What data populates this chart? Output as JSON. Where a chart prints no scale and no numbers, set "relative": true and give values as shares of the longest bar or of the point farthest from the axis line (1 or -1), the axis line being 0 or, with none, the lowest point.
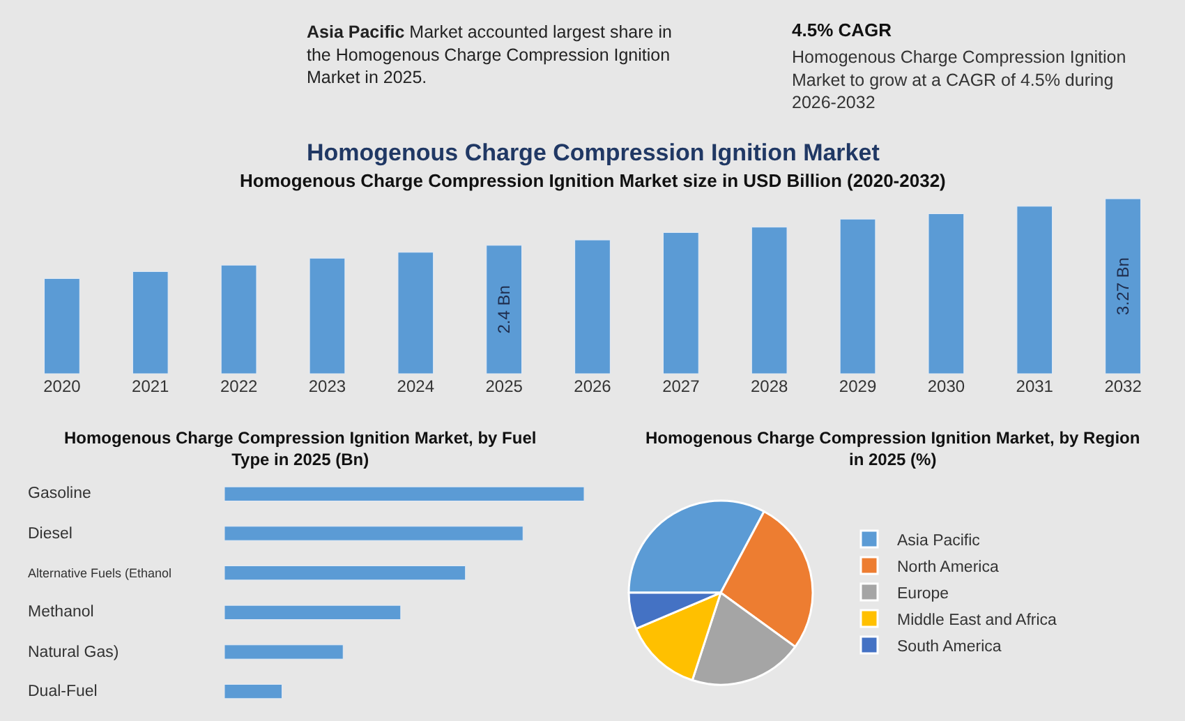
{
  "chart_data": [
    {
      "type": "other",
      "annotations": [
        "Asia Pacific",
        "Market accounted largest share in the Homogenous Charge Compression Ignition Market in 2025.",
        "4.5% CAGR",
        "Homogenous Charge Compression Ignition Market to grow at a CAGR of 4.5% during 2026-2032"
      ]
    },
    {
      "type": "bar",
      "title": "Homogenous Charge Compression Ignition Market",
      "subtitle": "Homogenous Charge Compression Ignition Market size in USD Billion (2020-2032)",
      "categories": [
        "2020",
        "2021",
        "2022",
        "2023",
        "2024",
        "2025",
        "2026",
        "2027",
        "2028",
        "2029",
        "2030",
        "2031",
        "2032"
      ],
      "values": [
        1.78,
        1.91,
        2.03,
        2.16,
        2.27,
        2.4,
        2.5,
        2.64,
        2.74,
        2.89,
        2.99,
        3.13,
        3.27
      ],
      "value_labels": [
        null,
        null,
        null,
        null,
        null,
        "2.4 Bn",
        null,
        null,
        null,
        null,
        null,
        null,
        "3.27 Bn"
      ],
      "color": "#5b9bd5",
      "tick_labels": "x",
      "grid": false,
      "legend": false
    },
    {
      "type": "bar",
      "orientation": "horizontal",
      "relative": true,
      "title": "Homogenous Charge Compression Ignition Market, by Fuel Type in 2025 (Bn)",
      "categories": [
        "Gasoline",
        "Diesel",
        "Alternative Fuels (Ethanol",
        "Methanol",
        "Natural Gas)",
        "Dual-Fuel"
      ],
      "values": [
        1,
        0.83,
        0.67,
        0.49,
        0.33,
        0.16
      ],
      "color": "#5b9bd5",
      "grid": false,
      "legend": false
    },
    {
      "type": "pie",
      "title": "Homogenous Charge Compression Ignition Market, by Region in 2025 (%)",
      "categories": [
        "Asia Pacific",
        "North America",
        "Europe",
        "Middle East and Africa",
        "South America"
      ],
      "values": [
        32.8,
        27.2,
        20,
        13.6,
        6.4
      ],
      "colors": [
        "#5b9bd5",
        "#ed7d31",
        "#a5a5a5",
        "#ffc000",
        "#4472c4"
      ],
      "legend": "right"
    }
  ]
}
